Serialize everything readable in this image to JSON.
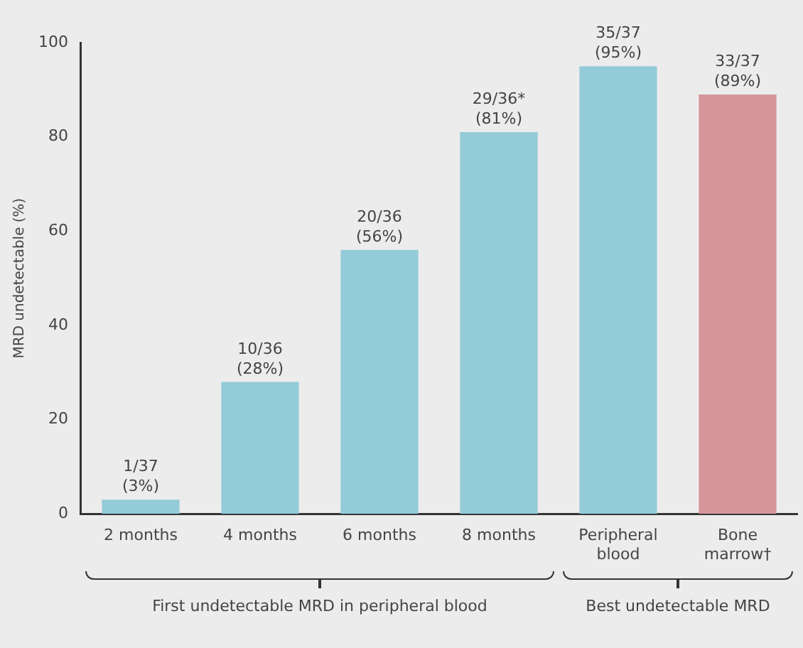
{
  "chart_data": {
    "type": "bar",
    "ylabel": "MRD undetectable (%)",
    "categories": [
      "2 months",
      "4 months",
      "6 months",
      "8 months",
      "Peripheral blood",
      "Bone marrow†"
    ],
    "values": [
      3,
      28,
      56,
      81,
      95,
      89
    ],
    "colors": [
      "#94cbd8",
      "#94cbd8",
      "#94cbd8",
      "#94cbd8",
      "#94cbd8",
      "#d4959b"
    ],
    "value_labels": [
      "1/37\n(3%)",
      "10/36\n(28%)",
      "20/36\n(56%)",
      "29/36*\n(81%)",
      "35/37\n(95%)",
      "33/37\n(89%)"
    ],
    "ylim": [
      0,
      100
    ],
    "yticks": [
      0,
      20,
      40,
      60,
      80,
      100
    ],
    "grid": false,
    "legend": false,
    "annotations": [
      "First undetectable MRD in peripheral blood",
      "Best undetectable MRD"
    ]
  }
}
